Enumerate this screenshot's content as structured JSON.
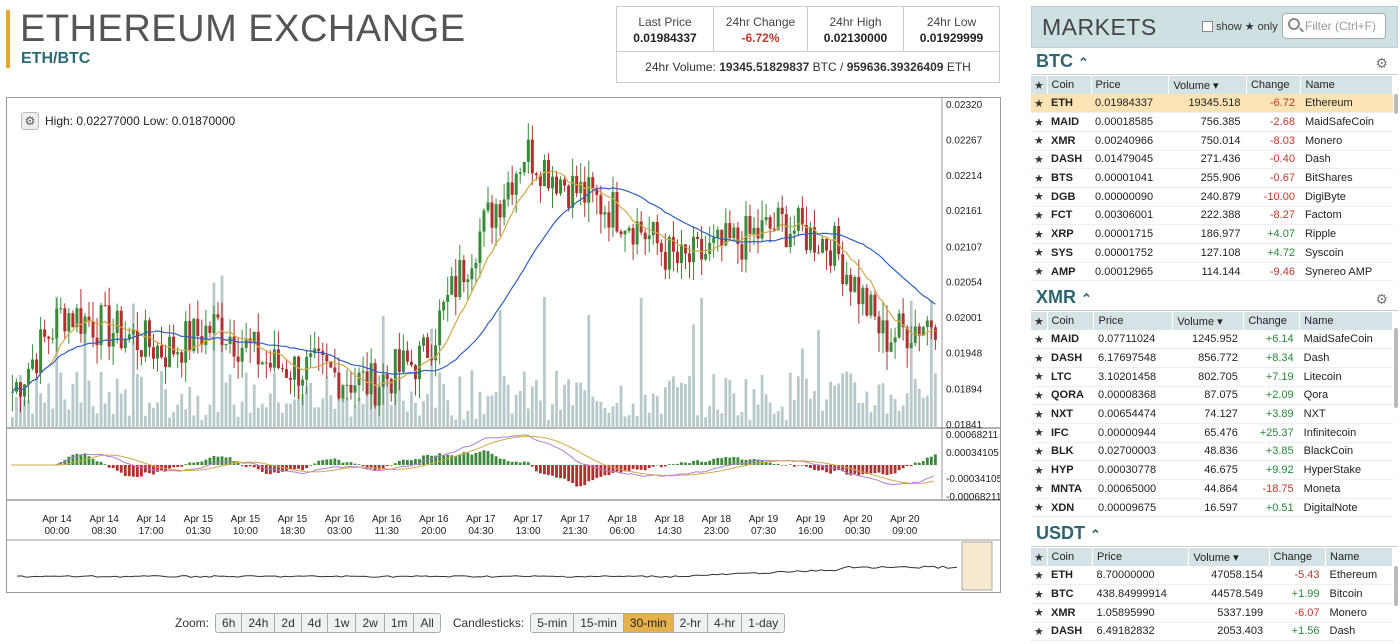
{
  "header": {
    "title": "ETHEREUM EXCHANGE",
    "pair": "ETH/BTC"
  },
  "stats": {
    "last_price_label": "Last Price",
    "last_price": "0.01984337",
    "change_label": "24hr Change",
    "change": "-6.72%",
    "high_label": "24hr High",
    "high": "0.02130000",
    "low_label": "24hr Low",
    "low": "0.01929999",
    "volume_prefix": "24hr Volume:",
    "volume_btc": "19345.51829837",
    "volume_btc_unit": "BTC /",
    "volume_eth": "959636.39326409",
    "volume_eth_unit": "ETH"
  },
  "chart": {
    "high_low": "High: 0.02277000   Low: 0.01870000",
    "price_ticks": [
      "0.02320",
      "0.02267",
      "0.02214",
      "0.02161",
      "0.02107",
      "0.02054",
      "0.02001",
      "0.01948",
      "0.01894",
      "0.01841"
    ],
    "macd_ticks": [
      "0.00068211",
      "0.00034105",
      "-0.00034105",
      "-0.00068211"
    ],
    "time_ticks": [
      [
        "Apr 14",
        "00:00"
      ],
      [
        "Apr 14",
        "08:30"
      ],
      [
        "Apr 14",
        "17:00"
      ],
      [
        "Apr 15",
        "01:30"
      ],
      [
        "Apr 15",
        "10:00"
      ],
      [
        "Apr 15",
        "18:30"
      ],
      [
        "Apr 16",
        "03:00"
      ],
      [
        "Apr 16",
        "11:30"
      ],
      [
        "Apr 16",
        "20:00"
      ],
      [
        "Apr 17",
        "04:30"
      ],
      [
        "Apr 17",
        "13:00"
      ],
      [
        "Apr 17",
        "21:30"
      ],
      [
        "Apr 18",
        "06:00"
      ],
      [
        "Apr 18",
        "14:30"
      ],
      [
        "Apr 18",
        "23:00"
      ],
      [
        "Apr 19",
        "07:30"
      ],
      [
        "Apr 19",
        "16:00"
      ],
      [
        "Apr 20",
        "00:30"
      ],
      [
        "Apr 20",
        "09:00"
      ]
    ],
    "colors": {
      "up": "#3a8a3a",
      "down": "#b03030",
      "ma_fast": "#d4a84a",
      "ma_slow": "#3060c0",
      "volume": "#b9c9cb",
      "macd_line": "#b080d0",
      "signal_line": "#d4a84a"
    }
  },
  "chart_data": {
    "type": "line",
    "title": "",
    "ylim": [
      0.01841,
      0.0232
    ],
    "x": [
      "Apr 14 00:00",
      "Apr 14 08:30",
      "Apr 14 17:00",
      "Apr 15 01:30",
      "Apr 15 10:00",
      "Apr 15 18:30",
      "Apr 16 03:00",
      "Apr 16 11:30",
      "Apr 16 20:00",
      "Apr 17 04:30",
      "Apr 17 13:00",
      "Apr 17 21:30",
      "Apr 18 06:00",
      "Apr 18 14:30",
      "Apr 18 23:00",
      "Apr 19 07:30",
      "Apr 19 16:00",
      "Apr 20 00:30",
      "Apr 20 09:00"
    ],
    "series": [
      {
        "values": [
          0.0189,
          0.0201,
          0.0198,
          0.0195,
          0.0199,
          0.0193,
          0.0192,
          0.019,
          0.0194,
          0.0211,
          0.0225,
          0.0219,
          0.0215,
          0.0208,
          0.0211,
          0.0214,
          0.0211,
          0.0197,
          0.02
        ]
      }
    ]
  },
  "zoom": {
    "label": "Zoom:",
    "buttons": [
      "6h",
      "24h",
      "2d",
      "4d",
      "1w",
      "2w",
      "1m",
      "All"
    ],
    "candle_label": "Candlesticks:",
    "candles": [
      "5-min",
      "15-min",
      "30-min",
      "2-hr",
      "4-hr",
      "1-day"
    ],
    "active_candle": "30-min"
  },
  "markets": {
    "title": "MARKETS",
    "show_label": "show",
    "only_label": "only",
    "filter_placeholder": "Filter (Ctrl+F)",
    "btc": {
      "title": "BTC",
      "columns": [
        "Coin",
        "Price",
        "Volume",
        "Change",
        "Name"
      ],
      "rows": [
        [
          "ETH",
          "0.01984337",
          "19345.518",
          "-6.72",
          "Ethereum"
        ],
        [
          "MAID",
          "0.00018585",
          "756.385",
          "-2.68",
          "MaidSafeCoin"
        ],
        [
          "XMR",
          "0.00240966",
          "750.014",
          "-8.03",
          "Monero"
        ],
        [
          "DASH",
          "0.01479045",
          "271.436",
          "-0.40",
          "Dash"
        ],
        [
          "BTS",
          "0.00001041",
          "255.906",
          "-0.67",
          "BitShares"
        ],
        [
          "DGB",
          "0.00000090",
          "240.879",
          "-10.00",
          "DigiByte"
        ],
        [
          "FCT",
          "0.00306001",
          "222.388",
          "-8.27",
          "Factom"
        ],
        [
          "XRP",
          "0.00001715",
          "186.977",
          "+4.07",
          "Ripple"
        ],
        [
          "SYS",
          "0.00001752",
          "127.108",
          "+4.72",
          "Syscoin"
        ],
        [
          "AMP",
          "0.00012965",
          "114.144",
          "-9.46",
          "Synereo AMP"
        ]
      ]
    },
    "xmr": {
      "title": "XMR",
      "columns": [
        "Coin",
        "Price",
        "Volume",
        "Change",
        "Name"
      ],
      "rows": [
        [
          "MAID",
          "0.07711024",
          "1245.952",
          "+6.14",
          "MaidSafeCoin"
        ],
        [
          "DASH",
          "6.17697548",
          "856.772",
          "+8.34",
          "Dash"
        ],
        [
          "LTC",
          "3.10201458",
          "802.705",
          "+7.19",
          "Litecoin"
        ],
        [
          "QORA",
          "0.00008368",
          "87.075",
          "+2.09",
          "Qora"
        ],
        [
          "NXT",
          "0.00654474",
          "74.127",
          "+3.89",
          "NXT"
        ],
        [
          "IFC",
          "0.00000944",
          "65.476",
          "+25.37",
          "Infinitecoin"
        ],
        [
          "BLK",
          "0.02700003",
          "48.836",
          "+3.85",
          "BlackCoin"
        ],
        [
          "HYP",
          "0.00030778",
          "46.675",
          "+9.92",
          "HyperStake"
        ],
        [
          "MNTA",
          "0.00065000",
          "44.864",
          "-18.75",
          "Moneta"
        ],
        [
          "XDN",
          "0.00009675",
          "16.597",
          "+0.51",
          "DigitalNote"
        ]
      ]
    },
    "usdt": {
      "title": "USDT",
      "columns": [
        "Coin",
        "Price",
        "Volume",
        "Change",
        "Name"
      ],
      "rows": [
        [
          "ETH",
          "8.70000000",
          "47058.154",
          "-5.43",
          "Ethereum"
        ],
        [
          "BTC",
          "438.84999914",
          "44578.549",
          "+1.99",
          "Bitcoin"
        ],
        [
          "XMR",
          "1.05895990",
          "5337.199",
          "-6.07",
          "Monero"
        ],
        [
          "DASH",
          "6.49182832",
          "2053.403",
          "+1.56",
          "Dash"
        ]
      ]
    }
  }
}
